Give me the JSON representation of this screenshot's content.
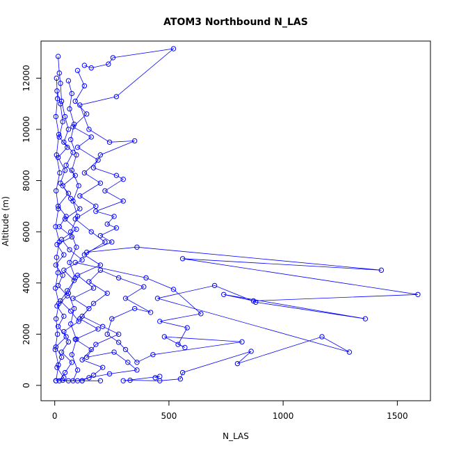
{
  "chart_data": {
    "type": "line",
    "title": "ATOM3 Northbound N_LAS",
    "xlabel": "N_LAS",
    "ylabel": "Altitude (m)",
    "xlim": [
      -60,
      1645
    ],
    "ylim": [
      -600,
      13450
    ],
    "x_ticks": [
      0,
      500,
      1000,
      1500
    ],
    "y_ticks": [
      0,
      2000,
      4000,
      6000,
      8000,
      10000,
      12000
    ],
    "grid": false,
    "legend": "none",
    "marker": "open-circle",
    "color": "#0000ff",
    "series": [
      {
        "values": [
          [
            15,
            12850
          ],
          [
            20,
            12200
          ],
          [
            25,
            11800
          ],
          [
            30,
            11100
          ],
          [
            45,
            10500
          ],
          [
            60,
            10000
          ],
          [
            40,
            9500
          ],
          [
            80,
            9100
          ],
          [
            50,
            8600
          ],
          [
            90,
            8200
          ],
          [
            35,
            7800
          ],
          [
            70,
            7300
          ],
          [
            110,
            6900
          ],
          [
            45,
            6500
          ],
          [
            95,
            6100
          ],
          [
            30,
            5700
          ],
          [
            65,
            5300
          ],
          [
            120,
            4900
          ],
          [
            40,
            4500
          ],
          [
            85,
            4100
          ],
          [
            55,
            3700
          ],
          [
            25,
            3300
          ],
          [
            70,
            2900
          ],
          [
            105,
            2500
          ],
          [
            40,
            2100
          ],
          [
            60,
            1700
          ],
          [
            30,
            1300
          ],
          [
            75,
            900
          ],
          [
            45,
            500
          ],
          [
            20,
            180
          ],
          [
            120,
            180
          ],
          [
            200,
            180
          ]
        ]
      },
      {
        "values": [
          [
            130,
            12500
          ],
          [
            160,
            12400
          ],
          [
            235,
            12550
          ],
          [
            255,
            12800
          ],
          [
            520,
            13150
          ],
          [
            270,
            11280
          ],
          [
            110,
            10950
          ],
          [
            150,
            10000
          ],
          [
            240,
            9500
          ],
          [
            350,
            9550
          ],
          [
            200,
            9000
          ],
          [
            170,
            8500
          ],
          [
            270,
            8200
          ],
          [
            300,
            8050
          ],
          [
            220,
            7600
          ],
          [
            300,
            7200
          ],
          [
            180,
            6800
          ],
          [
            260,
            6600
          ],
          [
            230,
            6300
          ],
          [
            270,
            6150
          ],
          [
            200,
            5850
          ],
          [
            250,
            5600
          ],
          [
            140,
            5200
          ],
          [
            360,
            5400
          ],
          [
            1430,
            4500
          ],
          [
            560,
            4950
          ],
          [
            1590,
            3550
          ],
          [
            870,
            3300
          ],
          [
            740,
            3550
          ],
          [
            1360,
            2600
          ],
          [
            880,
            3250
          ],
          [
            700,
            3900
          ],
          [
            450,
            3400
          ],
          [
            1290,
            1300
          ],
          [
            1170,
            1900
          ],
          [
            800,
            850
          ],
          [
            860,
            1330
          ],
          [
            560,
            500
          ],
          [
            550,
            250
          ],
          [
            460,
            180
          ],
          [
            330,
            200
          ],
          [
            300,
            180
          ],
          [
            460,
            350
          ],
          [
            440,
            300
          ]
        ]
      },
      {
        "values": [
          [
            90,
            4800
          ],
          [
            400,
            4200
          ],
          [
            520,
            3750
          ],
          [
            640,
            2800
          ],
          [
            460,
            2500
          ],
          [
            580,
            2250
          ],
          [
            540,
            1600
          ],
          [
            570,
            1480
          ],
          [
            480,
            1900
          ],
          [
            820,
            1700
          ],
          [
            430,
            1200
          ],
          [
            360,
            900
          ],
          [
            310,
            1400
          ],
          [
            280,
            1680
          ],
          [
            230,
            2000
          ],
          [
            250,
            2600
          ],
          [
            350,
            3000
          ],
          [
            420,
            2850
          ],
          [
            310,
            3400
          ],
          [
            390,
            3850
          ],
          [
            280,
            4200
          ],
          [
            200,
            4500
          ],
          [
            150,
            4050
          ],
          [
            230,
            3600
          ],
          [
            170,
            3200
          ],
          [
            120,
            2700
          ],
          [
            210,
            2300
          ],
          [
            280,
            2000
          ],
          [
            180,
            1600
          ],
          [
            140,
            1100
          ],
          [
            260,
            1300
          ],
          [
            320,
            900
          ],
          [
            360,
            600
          ],
          [
            240,
            450
          ],
          [
            150,
            300
          ],
          [
            100,
            180
          ],
          [
            60,
            180
          ],
          [
            35,
            200
          ]
        ]
      },
      {
        "values": [
          [
            10,
            11500
          ],
          [
            25,
            11000
          ],
          [
            35,
            10300
          ],
          [
            20,
            9700
          ],
          [
            55,
            9300
          ],
          [
            15,
            8900
          ],
          [
            45,
            8400
          ],
          [
            25,
            7900
          ],
          [
            60,
            7500
          ],
          [
            15,
            7000
          ],
          [
            50,
            6600
          ],
          [
            20,
            6200
          ],
          [
            75,
            5800
          ],
          [
            10,
            5500
          ],
          [
            40,
            5100
          ],
          [
            5,
            4700
          ],
          [
            35,
            4300
          ],
          [
            15,
            3900
          ],
          [
            55,
            3500
          ],
          [
            10,
            3100
          ],
          [
            40,
            2700
          ],
          [
            15,
            2300
          ],
          [
            50,
            1900
          ],
          [
            5,
            1500
          ],
          [
            30,
            1100
          ],
          [
            10,
            700
          ],
          [
            40,
            300
          ],
          [
            5,
            180
          ]
        ]
      },
      {
        "values": [
          [
            100,
            12300
          ],
          [
            130,
            11700
          ],
          [
            90,
            11100
          ],
          [
            140,
            10600
          ],
          [
            80,
            10100
          ],
          [
            160,
            9700
          ],
          [
            100,
            9300
          ],
          [
            190,
            8800
          ],
          [
            130,
            8300
          ],
          [
            200,
            7900
          ],
          [
            110,
            7400
          ],
          [
            180,
            7000
          ],
          [
            90,
            6500
          ],
          [
            160,
            6000
          ],
          [
            220,
            5600
          ],
          [
            130,
            5100
          ],
          [
            200,
            4700
          ],
          [
            100,
            4300
          ],
          [
            170,
            3800
          ],
          [
            80,
            3400
          ],
          [
            150,
            3000
          ],
          [
            110,
            2600
          ],
          [
            190,
            2200
          ],
          [
            90,
            1800
          ],
          [
            160,
            1400
          ],
          [
            120,
            1000
          ],
          [
            210,
            700
          ],
          [
            170,
            400
          ],
          [
            120,
            180
          ]
        ]
      },
      {
        "values": [
          [
            8,
            12000
          ],
          [
            12,
            11200
          ],
          [
            5,
            10500
          ],
          [
            18,
            9800
          ],
          [
            8,
            9000
          ],
          [
            22,
            8300
          ],
          [
            6,
            7600
          ],
          [
            16,
            6900
          ],
          [
            4,
            6200
          ],
          [
            20,
            5600
          ],
          [
            8,
            5000
          ],
          [
            14,
            4400
          ],
          [
            3,
            3800
          ],
          [
            18,
            3200
          ],
          [
            6,
            2600
          ],
          [
            12,
            2000
          ],
          [
            2,
            1400
          ],
          [
            16,
            800
          ],
          [
            6,
            180
          ]
        ]
      },
      {
        "values": [
          [
            60,
            11900
          ],
          [
            75,
            11400
          ],
          [
            65,
            10800
          ],
          [
            85,
            10200
          ],
          [
            70,
            9600
          ],
          [
            95,
            9000
          ],
          [
            75,
            8400
          ],
          [
            105,
            7800
          ],
          [
            80,
            7200
          ],
          [
            100,
            6600
          ],
          [
            70,
            6000
          ],
          [
            95,
            5400
          ],
          [
            65,
            4800
          ],
          [
            90,
            4200
          ],
          [
            60,
            3600
          ],
          [
            85,
            3000
          ],
          [
            70,
            2400
          ],
          [
            95,
            1800
          ],
          [
            75,
            1200
          ],
          [
            100,
            600
          ],
          [
            80,
            180
          ]
        ]
      }
    ]
  }
}
